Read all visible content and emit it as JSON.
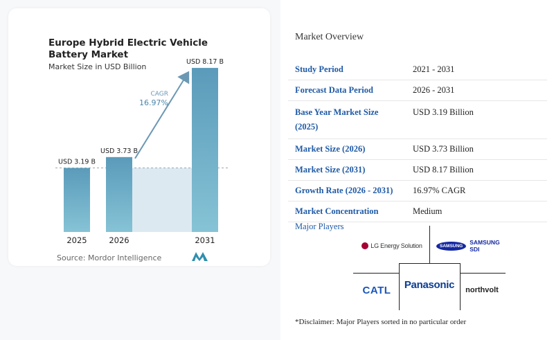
{
  "chart_data": {
    "type": "bar",
    "title": "Europe Hybrid Electric Vehicle Battery Market",
    "subtitle": "Market Size in USD Billion",
    "categories": [
      "2025",
      "2026",
      "2031"
    ],
    "values": [
      3.19,
      3.73,
      8.17
    ],
    "value_labels": [
      "USD 3.19 B",
      "USD 3.73 B",
      "USD 8.17 B"
    ],
    "cagr_label": "CAGR",
    "cagr_value": "16.97%",
    "bar_color": "#5b9bba",
    "bar_color_light": "#86c3d6",
    "shade_color": "#dde9f1",
    "arrow_color": "#6c98b4",
    "ylim": [
      0,
      9
    ]
  },
  "source": "Source: Mordor Intelligence",
  "overview": {
    "title": "Market Overview",
    "rows": [
      {
        "key": "Study Period",
        "value": "2021 - 2031"
      },
      {
        "key": "Forecast Data Period",
        "value": "2026 - 2031"
      },
      {
        "key": "Base Year Market Size (2025)",
        "value": "USD 3.19 Billion"
      },
      {
        "key": "Market Size (2026)",
        "value": "USD 3.73 Billion"
      },
      {
        "key": "Market Size (2031)",
        "value": "USD 8.17 Billion"
      },
      {
        "key": "Growth Rate (2026 - 2031)",
        "value": "16.97% CAGR"
      },
      {
        "key": "Market Concentration",
        "value": "Medium"
      }
    ]
  },
  "players": {
    "title": "Major Players",
    "logos": [
      "LG Energy Solution",
      "SAMSUNG",
      "SAMSUNG SDI",
      "CATL",
      "Panasonic",
      "northvolt"
    ]
  },
  "disclaimer": "*Disclaimer: Major Players sorted in no particular order"
}
